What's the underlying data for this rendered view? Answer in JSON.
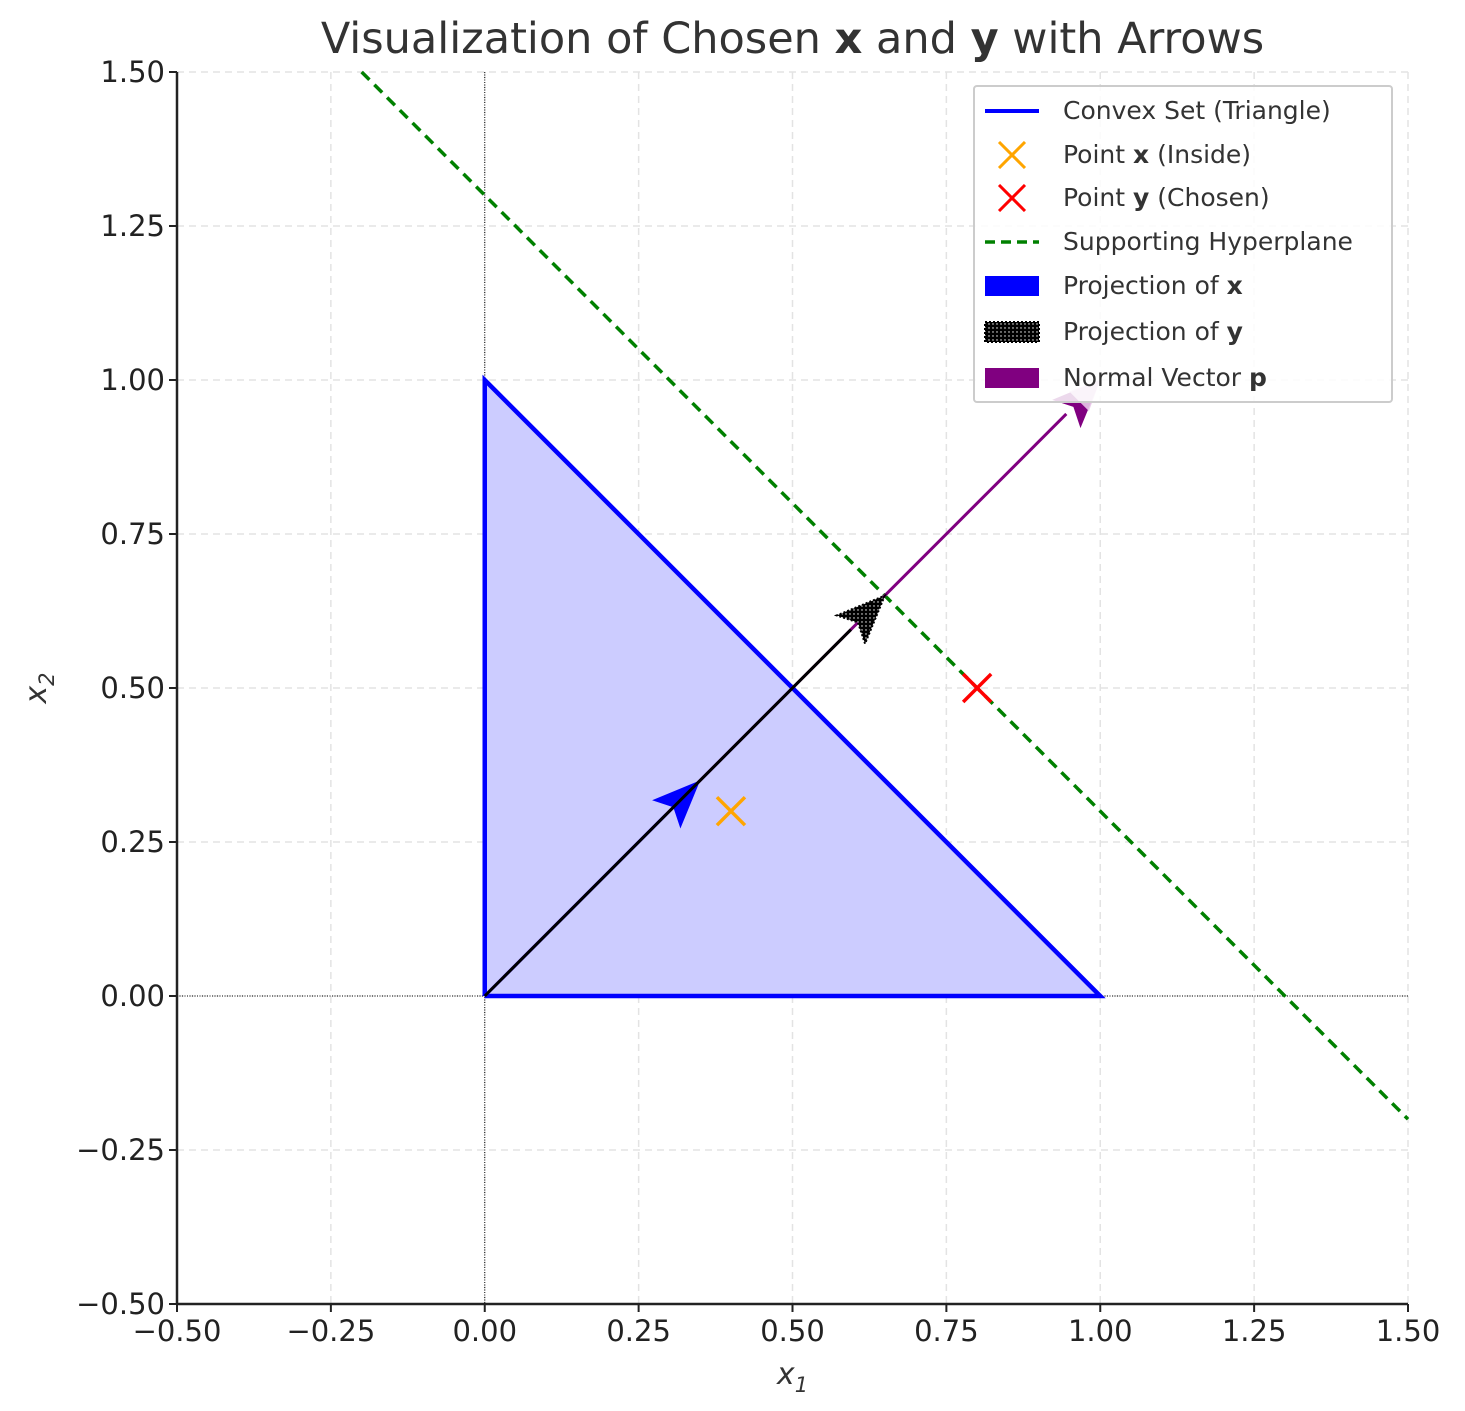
{
  "chart_data": {
    "type": "line",
    "title": {
      "prefix": "Visualization of Chosen ",
      "bold1": "x",
      "middle": " and ",
      "bold2": "y",
      "suffix": " with Arrows"
    },
    "xlabel": "x",
    "xlabel_sub": "1",
    "ylabel": "x",
    "ylabel_sub": "2",
    "xlim": [
      -0.5,
      1.5
    ],
    "ylim": [
      -0.5,
      1.5
    ],
    "xticks": [
      -0.5,
      -0.25,
      0.0,
      0.25,
      0.5,
      0.75,
      1.0,
      1.25,
      1.5
    ],
    "yticks": [
      -0.5,
      -0.25,
      0.0,
      0.25,
      0.5,
      0.75,
      1.0,
      1.25,
      1.5
    ],
    "xtick_labels": [
      "−0.50",
      "−0.25",
      "0.00",
      "0.25",
      "0.50",
      "0.75",
      "1.00",
      "1.25",
      "1.50"
    ],
    "ytick_labels": [
      "−0.50",
      "−0.25",
      "0.00",
      "0.25",
      "0.50",
      "0.75",
      "1.00",
      "1.25",
      "1.50"
    ],
    "grid": true,
    "legend_position": "top-right",
    "triangle": {
      "vertices": [
        [
          0,
          0
        ],
        [
          1,
          0
        ],
        [
          0,
          1
        ],
        [
          0,
          0
        ]
      ],
      "edge_color": "#0000ff",
      "fill_color": "#ccccff"
    },
    "point_x": {
      "x": 0.4,
      "y": 0.3,
      "color": "#ffa500",
      "marker": "x"
    },
    "point_y": {
      "x": 0.8,
      "y": 0.5,
      "color": "#ff0000",
      "marker": "x"
    },
    "hyperplane": {
      "x": [
        -0.2,
        1.5
      ],
      "y": [
        1.5,
        -0.2
      ],
      "color": "#008000",
      "style": "dashed"
    },
    "arrows": [
      {
        "name": "projection-x",
        "from": [
          0,
          0
        ],
        "to": [
          0.35,
          0.35
        ],
        "color": "#0000ff"
      },
      {
        "name": "projection-y",
        "from": [
          0,
          0
        ],
        "to": [
          0.65,
          0.65
        ],
        "color": "#000000",
        "hatched": true
      },
      {
        "name": "normal-vector",
        "from": [
          0,
          0
        ],
        "to": [
          1.0,
          1.0
        ],
        "color": "#800080"
      }
    ],
    "legend": [
      {
        "kind": "line",
        "color": "#0000ff",
        "label": "Convex Set (Triangle)"
      },
      {
        "kind": "xmark",
        "color": "#ffa500",
        "label_prefix": "Point ",
        "label_bold": "x",
        "label_suffix": " (Inside)"
      },
      {
        "kind": "xmark",
        "color": "#ff0000",
        "label_prefix": "Point ",
        "label_bold": "y",
        "label_suffix": " (Chosen)"
      },
      {
        "kind": "dashed",
        "color": "#008000",
        "label": "Supporting Hyperplane"
      },
      {
        "kind": "patch",
        "color": "#0000ff",
        "label_prefix": "Projection of ",
        "label_bold": "x"
      },
      {
        "kind": "hatched",
        "color": "#000000",
        "label_prefix": "Projection of ",
        "label_bold": "y"
      },
      {
        "kind": "patch",
        "color": "#800080",
        "label_prefix": "Normal Vector ",
        "label_bold": "p"
      }
    ]
  }
}
